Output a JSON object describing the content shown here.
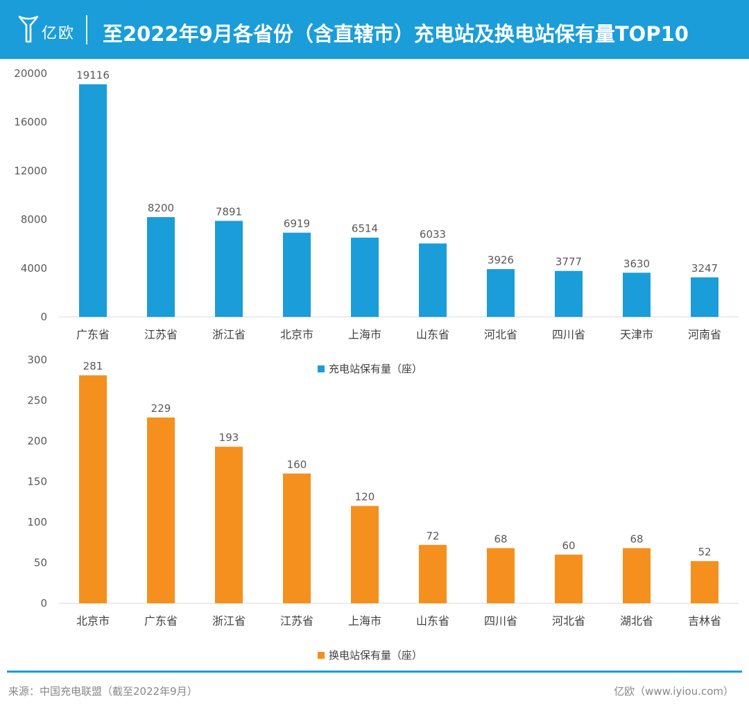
{
  "header": {
    "logo_text": "亿欧",
    "title": "至2022年9月各省份（含直辖市）充电站及换电站保有量TOP10"
  },
  "colors": {
    "header": "#1a9dd9",
    "charging": "#1a9dd9",
    "swap": "#f5901e"
  },
  "chart_data": [
    {
      "type": "bar",
      "categories": [
        "广东省",
        "江苏省",
        "浙江省",
        "北京市",
        "上海市",
        "山东省",
        "河北省",
        "四川省",
        "天津市",
        "河南省"
      ],
      "values": [
        19116,
        8200,
        7891,
        6919,
        6514,
        6033,
        3926,
        3777,
        3630,
        3247
      ],
      "series_name": "充电站保有量（座）",
      "yticks": [
        "0",
        "4000",
        "8000",
        "12000",
        "16000",
        "20000"
      ],
      "ylim": [
        0,
        20000
      ],
      "legend": "bottom"
    },
    {
      "type": "bar",
      "categories": [
        "北京市",
        "广东省",
        "浙江省",
        "江苏省",
        "上海市",
        "山东省",
        "四川省",
        "河北省",
        "湖北省",
        "吉林省"
      ],
      "values": [
        281,
        229,
        193,
        160,
        120,
        72,
        68,
        60,
        68,
        52
      ],
      "series_name": "换电站保有量（座）",
      "yticks": [
        "0",
        "50",
        "100",
        "150",
        "200",
        "250",
        "300"
      ],
      "ylim": [
        0,
        300
      ],
      "legend": "bottom"
    }
  ],
  "footer": {
    "source": "来源：中国充电联盟（截至2022年9月）",
    "credit": "亿欧（www.iyiou.com）"
  }
}
